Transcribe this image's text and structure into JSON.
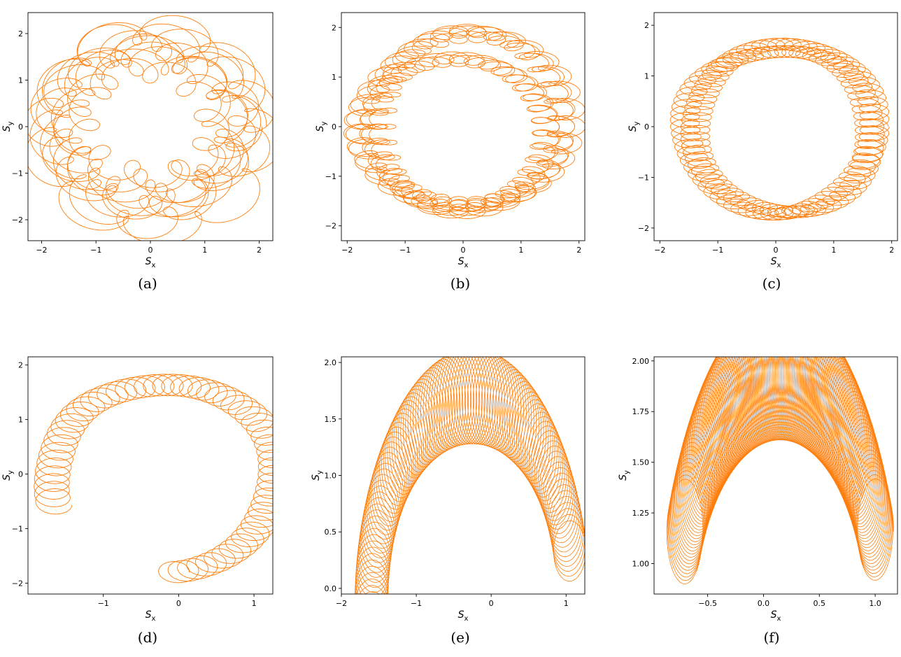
{
  "figure": {
    "trajectory_color": "#ff7f0e"
  },
  "chart_data": [
    {
      "type": "line",
      "panel": "a",
      "caption": "(a)",
      "xlabel": "S",
      "xlabel_sub": "x",
      "ylabel": "S",
      "ylabel_sub": "y",
      "xlim": [
        -2.25,
        2.25
      ],
      "ylim": [
        -2.45,
        2.45
      ],
      "xticks": [
        -2,
        -1,
        0,
        1,
        2
      ],
      "xtick_labels": [
        "−2",
        "−1",
        "0",
        "1",
        "2"
      ],
      "yticks": [
        -2,
        -1,
        0,
        1,
        2
      ],
      "ytick_labels": [
        "−2",
        "−1",
        "0",
        "1",
        "2"
      ],
      "grid": false,
      "series": [
        {
          "values": {
            "kind": "ring",
            "cx": 0.0,
            "cy": 0.0,
            "rx": 1.65,
            "ry": 1.6,
            "ampX": 0.32,
            "ampY": 0.35,
            "revs": 9,
            "loops": 95,
            "loopR": 0.34,
            "loopRy": 0.3,
            "spread": 0.12,
            "arcStart": 0,
            "arcEnd": 6.2832,
            "samples": 9000,
            "lineWidth": 0.9
          }
        }
      ]
    },
    {
      "type": "line",
      "panel": "b",
      "caption": "(b)",
      "xlabel": "S",
      "xlabel_sub": "x",
      "ylabel": "S",
      "ylabel_sub": "y",
      "xlim": [
        -2.1,
        2.1
      ],
      "ylim": [
        -2.3,
        2.3
      ],
      "xticks": [
        -2,
        -1,
        0,
        1,
        2
      ],
      "xtick_labels": [
        "−2",
        "−1",
        "0",
        "1",
        "2"
      ],
      "yticks": [
        -2,
        -1,
        0,
        1,
        2
      ],
      "ytick_labels": [
        "−2",
        "−1",
        "0",
        "1",
        "2"
      ],
      "grid": false,
      "series": [
        {
          "values": {
            "kind": "ring",
            "cx": 0.0,
            "cy": 0.0,
            "rx": 1.62,
            "ry": 1.62,
            "ampX": 0.18,
            "ampY": 0.22,
            "revs": 5,
            "loops": 170,
            "loopR": 0.26,
            "loopRy": 0.13,
            "spread": 0.05,
            "arcStart": 0,
            "arcEnd": 6.2832,
            "samples": 9000,
            "lineWidth": 0.9
          }
        }
      ]
    },
    {
      "type": "line",
      "panel": "c",
      "caption": "(c)",
      "xlabel": "S",
      "xlabel_sub": "x",
      "ylabel": "S",
      "ylabel_sub": "y",
      "xlim": [
        -2.1,
        2.1
      ],
      "ylim": [
        -2.25,
        2.25
      ],
      "xticks": [
        -2,
        -1,
        0,
        1,
        2
      ],
      "xtick_labels": [
        "−2",
        "−1",
        "0",
        "1",
        "2"
      ],
      "yticks": [
        -2,
        -1,
        0,
        1,
        2
      ],
      "ytick_labels": [
        "−2",
        "−1",
        "0",
        "1",
        "2"
      ],
      "grid": false,
      "series": [
        {
          "values": {
            "kind": "ring",
            "cx": 0.08,
            "cy": 0.0,
            "rx": 1.58,
            "ry": 1.62,
            "ampX": 0.1,
            "ampY": 0.1,
            "revs": 2,
            "loops": 150,
            "loopR": 0.28,
            "loopRy": 0.13,
            "spread": 0.02,
            "arcStart": 0,
            "arcEnd": 6.2832,
            "samples": 9000,
            "lineWidth": 0.9
          }
        }
      ]
    },
    {
      "type": "line",
      "panel": "d",
      "caption": "(d)",
      "xlabel": "S",
      "xlabel_sub": "x",
      "ylabel": "S",
      "ylabel_sub": "y",
      "xlim": [
        -2.0,
        1.25
      ],
      "ylim": [
        -2.2,
        2.15
      ],
      "xticks": [
        -1,
        0,
        1
      ],
      "xtick_labels": [
        "−1",
        "0",
        "1"
      ],
      "yticks": [
        -2,
        -1,
        0,
        1,
        2
      ],
      "ytick_labels": [
        "−2",
        "−1",
        "0",
        "1",
        "2"
      ],
      "grid": false,
      "series": [
        {
          "values": {
            "kind": "ring",
            "cx": -0.2,
            "cy": -0.05,
            "rx": 1.5,
            "ry": 1.72,
            "ampX": 0.04,
            "ampY": 0.04,
            "revs": 1,
            "loops": 60,
            "loopR": 0.26,
            "loopRy": 0.22,
            "spread": 0.0,
            "arcStart": -1.5,
            "arcEnd": 3.45,
            "samples": 9000,
            "lineWidth": 0.9
          }
        }
      ]
    },
    {
      "type": "line",
      "panel": "e",
      "caption": "(e)",
      "xlabel": "S",
      "xlabel_sub": "x",
      "ylabel": "S",
      "ylabel_sub": "y",
      "xlim": [
        -2.0,
        1.25
      ],
      "ylim": [
        -0.05,
        2.05
      ],
      "xticks": [
        -2,
        -1,
        0,
        1
      ],
      "xtick_labels": [
        "−2",
        "−1",
        "0",
        "1"
      ],
      "yticks": [
        0.0,
        0.5,
        1.0,
        1.5,
        2.0
      ],
      "ytick_labels": [
        "0.0",
        "0.5",
        "1.0",
        "1.5",
        "2.0"
      ],
      "grid": false,
      "series": [
        {
          "values": {
            "kind": "arch",
            "cx": -0.25,
            "cy": -0.15,
            "rx": 1.35,
            "ry": 1.85,
            "ampX": 0.0,
            "ampY": 0.0,
            "revs": 1,
            "loops": 110,
            "loopR": 0.22,
            "loopRy": 0.42,
            "spread": 0.0,
            "arcStart": 0.25,
            "arcEnd": 3.3,
            "samples": 12000,
            "lineWidth": 0.8
          }
        }
      ]
    },
    {
      "type": "line",
      "panel": "f",
      "caption": "(f)",
      "xlabel": "S",
      "xlabel_sub": "x",
      "ylabel": "S",
      "ylabel_sub": "y",
      "xlim": [
        -0.98,
        1.2
      ],
      "ylim": [
        0.85,
        2.02
      ],
      "xticks": [
        -0.5,
        0.0,
        0.5,
        1.0
      ],
      "xtick_labels": [
        "−0.5",
        "0.0",
        "0.5",
        "1.0"
      ],
      "yticks": [
        1.0,
        1.25,
        1.5,
        1.75,
        2.0
      ],
      "ytick_labels": [
        "1.00",
        "1.25",
        "1.50",
        "1.75",
        "2.00"
      ],
      "grid": false,
      "series": [
        {
          "values": {
            "kind": "arch",
            "cx": 0.15,
            "cy": 0.55,
            "rx": 0.95,
            "ry": 1.4,
            "ampX": 0.0,
            "ampY": 0.0,
            "revs": 1,
            "loops": 150,
            "loopR": 0.16,
            "loopRy": 0.34,
            "spread": 0.0,
            "arcStart": 0.45,
            "arcEnd": 2.7,
            "samples": 14000,
            "lineWidth": 0.8
          }
        }
      ]
    }
  ]
}
